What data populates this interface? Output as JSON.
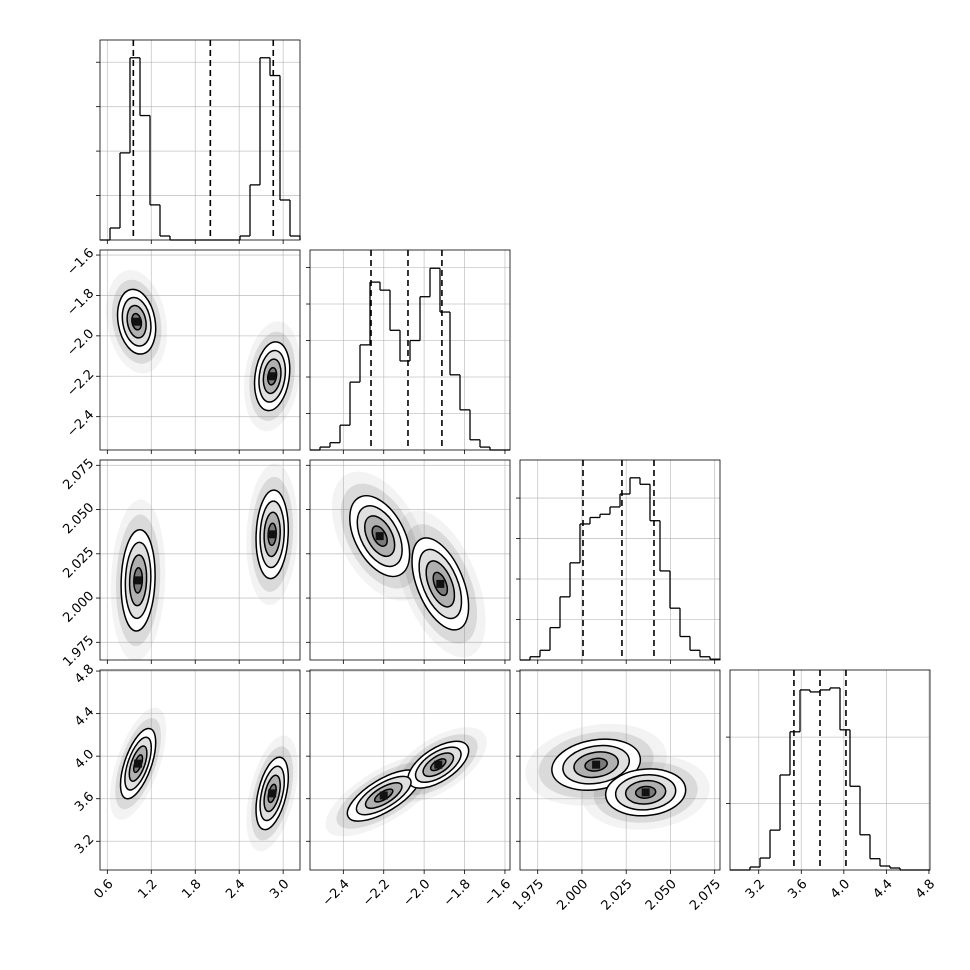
{
  "chart_data": {
    "type": "corner",
    "grid": true,
    "params": [
      {
        "lim": [
          0.5,
          3.23
        ],
        "ticks": [
          0.6,
          1.2,
          1.8,
          2.4,
          {
            "value": 3.0,
            "label": "3.0"
          }
        ],
        "quantiles": [
          0.955,
          2.006,
          2.865
        ],
        "hist": {
          "bins": [
            0.5,
            0.6365,
            0.773,
            0.9095,
            1.046,
            1.1825,
            1.319,
            1.4555,
            1.592,
            1.7285,
            1.865,
            2.0015,
            2.138,
            2.2745,
            2.411,
            2.5475,
            2.684,
            2.8205,
            2.957,
            3.0935,
            3.23
          ],
          "counts": [
            0,
            270,
            1960,
            4100,
            2800,
            790,
            90,
            0,
            0,
            0,
            0,
            0,
            0,
            0,
            90,
            1240,
            4100,
            3700,
            900,
            90
          ],
          "ylim": [
            0,
            4500
          ],
          "yticks": [
            1000,
            2000,
            3000,
            4000
          ]
        },
        "pairs": []
      },
      {
        "lim": [
          -2.565,
          -1.575
        ],
        "ticks": [
          {
            "value": -2.4,
            "label": "−2.4"
          },
          {
            "value": -2.2,
            "label": "−2.2"
          },
          {
            "value": -2.0,
            "label": "−2.0"
          },
          {
            "value": -1.8,
            "label": "−1.8"
          },
          {
            "value": -1.6,
            "label": "−1.6"
          }
        ],
        "quantiles": [
          -2.263,
          -2.08,
          -1.912
        ],
        "hist": {
          "bins": [
            -2.565,
            -2.5155,
            -2.466,
            -2.4165,
            -2.367,
            -2.3175,
            -2.268,
            -2.2185,
            -2.169,
            -2.1195,
            -2.07,
            -2.0205,
            -1.971,
            -1.9215,
            -1.872,
            -1.8225,
            -1.773,
            -1.7235,
            -1.674,
            -1.6245,
            -1.575
          ],
          "counts": [
            0,
            40,
            100,
            340,
            930,
            1440,
            2300,
            2190,
            1640,
            1220,
            1500,
            2100,
            2490,
            1890,
            1030,
            550,
            140,
            40,
            0,
            0
          ],
          "ylim": [
            0,
            2740
          ],
          "yticks": [
            500,
            1000,
            1500,
            2000,
            2500
          ]
        },
        "pairs": [
          [
            {
              "x": 1.0,
              "y": -1.93,
              "sx": 0.13,
              "sy": 0.08,
              "rho": -0.2
            },
            {
              "x": 2.85,
              "y": -2.2,
              "sx": 0.12,
              "sy": 0.085,
              "rho": 0.2
            }
          ]
        ]
      },
      {
        "lim": [
          1.965,
          2.078
        ],
        "ticks": [
          1.975,
          {
            "value": 2.0,
            "label": "2.000"
          },
          2.025,
          {
            "value": 2.05,
            "label": "2.050"
          },
          2.075
        ],
        "quantiles": [
          2.0006,
          2.0226,
          2.0407
        ],
        "hist": {
          "bins": [
            1.965,
            1.97065,
            1.9763,
            1.98195,
            1.9876,
            1.99325,
            1.9989,
            2.00455,
            2.0102,
            2.01585,
            2.0215,
            2.02715,
            2.0328,
            2.03845,
            2.0441,
            2.04975,
            2.0554,
            2.06105,
            2.0667,
            2.07235,
            2.078
          ],
          "counts": [
            0,
            40,
            120,
            400,
            780,
            1200,
            1680,
            1760,
            1800,
            1890,
            2050,
            2250,
            2170,
            1720,
            1100,
            640,
            290,
            120,
            40,
            10
          ],
          "ylim": [
            0,
            2470
          ],
          "yticks": [
            500,
            1000,
            1500,
            2000
          ]
        },
        "pairs": [
          [
            {
              "x": 1.02,
              "y": 2.01,
              "sx": 0.116,
              "sy": 0.0143,
              "rho": 0.1
            },
            {
              "x": 2.85,
              "y": 2.036,
              "sx": 0.11,
              "sy": 0.0125,
              "rho": 0.1
            }
          ],
          [
            {
              "x": -2.22,
              "y": 2.035,
              "sx": 0.074,
              "sy": 0.0114,
              "rho": -0.45
            },
            {
              "x": -1.92,
              "y": 2.008,
              "sx": 0.07,
              "sy": 0.013,
              "rho": -0.5
            }
          ]
        ]
      },
      {
        "lim": [
          2.93,
          4.81
        ],
        "ticks": [
          3.2,
          3.6,
          {
            "value": 4.0,
            "label": "4.0"
          },
          4.4,
          4.8
        ],
        "quantiles": [
          3.531,
          3.776,
          4.02
        ],
        "hist": {
          "bins": [
            2.93,
            3.024,
            3.118,
            3.212,
            3.306,
            3.4,
            3.494,
            3.588,
            3.682,
            3.776,
            3.87,
            3.964,
            4.058,
            4.152,
            4.246,
            4.34,
            4.434,
            4.528,
            4.622,
            4.716,
            4.81
          ],
          "counts": [
            0,
            0,
            45,
            180,
            600,
            1430,
            2080,
            2710,
            2680,
            2710,
            2740,
            2110,
            1260,
            530,
            170,
            60,
            30,
            0,
            0,
            0
          ],
          "ylim": [
            0,
            3010
          ],
          "yticks": [
            1000,
            2000
          ]
        },
        "pairs": [
          [
            {
              "x": 1.02,
              "y": 3.93,
              "sx": 0.12,
              "sy": 0.165,
              "rho": 0.6
            },
            {
              "x": 2.85,
              "y": 3.65,
              "sx": 0.11,
              "sy": 0.17,
              "rho": 0.45
            }
          ],
          [
            {
              "x": -2.2,
              "y": 3.63,
              "sx": 0.09,
              "sy": 0.12,
              "rho": 0.7
            },
            {
              "x": -1.93,
              "y": 3.92,
              "sx": 0.075,
              "sy": 0.11,
              "rho": 0.6
            }
          ],
          [
            {
              "x": 2.008,
              "y": 3.92,
              "sx": 0.0125,
              "sy": 0.12,
              "rho": 0.2
            },
            {
              "x": 2.036,
              "y": 3.66,
              "sx": 0.0113,
              "sy": 0.11,
              "rho": 0.1
            }
          ]
        ]
      }
    ]
  }
}
